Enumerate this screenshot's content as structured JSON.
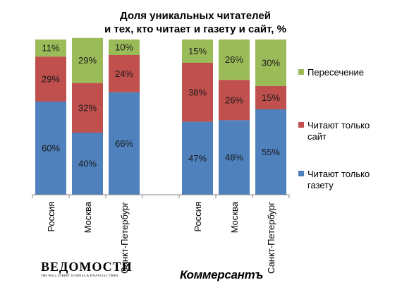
{
  "chart_data": {
    "type": "bar",
    "stacked": true,
    "percent_stacked": true,
    "title_lines": [
      "Доля уникальных читателей",
      "и тех, кто читает и газету и сайт, %"
    ],
    "groups": [
      {
        "publication": "Ведомости",
        "categories": [
          "Россия",
          "Москва",
          "Санкт-Петербург"
        ]
      },
      {
        "publication": "Коммерсант",
        "categories": [
          "Россия",
          "Москва",
          "Санкт-Петербург"
        ]
      }
    ],
    "categories": [
      "Россия",
      "Москва",
      "Санкт-Петербург",
      "Россия",
      "Москва",
      "Санкт-Петербург"
    ],
    "series": [
      {
        "name": "Читают только газету",
        "color": "#4f81bd",
        "values": [
          60,
          40,
          66,
          47,
          48,
          55
        ]
      },
      {
        "name": "Читают только сайт",
        "color": "#c0504d",
        "values": [
          29,
          32,
          24,
          38,
          26,
          15
        ]
      },
      {
        "name": "Пересечение",
        "color": "#9bbb59",
        "values": [
          11,
          29,
          10,
          15,
          26,
          30
        ]
      }
    ],
    "ylim": [
      0,
      100
    ],
    "grid": false,
    "legend_position": "right",
    "legend": [
      {
        "lines": [
          "Пересечение"
        ],
        "color": "#9bbb59"
      },
      {
        "lines": [
          "Читают только",
          "сайт"
        ],
        "color": "#c0504d"
      },
      {
        "lines": [
          "Читают только",
          "газету"
        ],
        "color": "#4f81bd"
      }
    ]
  },
  "logos": {
    "vedomosti_name": "ВЕДОМОСТИ",
    "vedomosti_tagline": "THE WALL STREET JOURNAL & FINANCIAL TIMES",
    "kommersant_name": "Коммерсантъ"
  }
}
